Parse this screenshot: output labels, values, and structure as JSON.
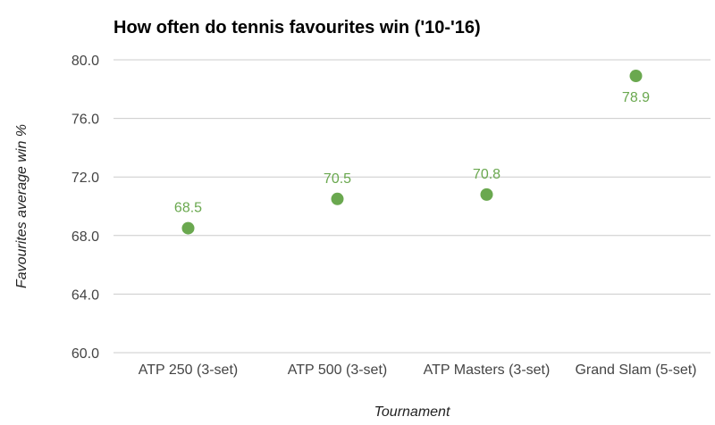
{
  "chart_data": {
    "type": "scatter",
    "title": "How often do tennis favourites win ('10-'16)",
    "xlabel": "Tournament",
    "ylabel": "Favourites average win %",
    "categories": [
      "ATP 250 (3-set)",
      "ATP 500 (3-set)",
      "ATP Masters (3-set)",
      "Grand Slam (5-set)"
    ],
    "values": [
      68.5,
      70.5,
      70.8,
      78.9
    ],
    "data_labels": [
      "68.5",
      "70.5",
      "70.8",
      "78.9"
    ],
    "ylim": [
      60,
      80
    ],
    "yticks": [
      "60.0",
      "64.0",
      "68.0",
      "72.0",
      "76.0",
      "80.0"
    ],
    "grid": true,
    "legend": "none",
    "point_color": "#6aa84f",
    "label_color": "#6aa84f"
  }
}
